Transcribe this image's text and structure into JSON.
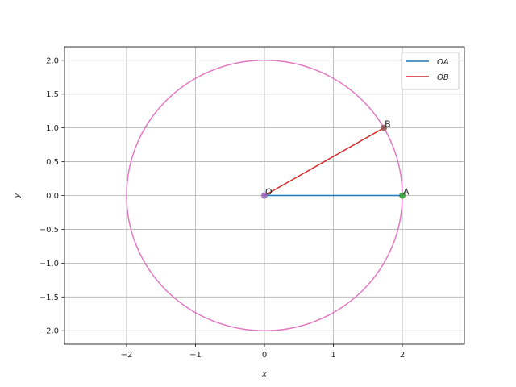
{
  "chart_data": {
    "type": "line",
    "title": "",
    "xlabel": "x",
    "ylabel": "y",
    "xlim": [
      -2.9,
      2.9
    ],
    "ylim": [
      -2.2,
      2.2
    ],
    "grid": true,
    "legend_position": "top-right",
    "xticks": [
      -2,
      -1,
      0,
      1,
      2
    ],
    "yticks": [
      -2.0,
      -1.5,
      -1.0,
      -0.5,
      0.0,
      0.5,
      1.0,
      1.5,
      2.0
    ],
    "xtick_labels": [
      "−2",
      "−1",
      "0",
      "1",
      "2"
    ],
    "ytick_labels": [
      "−2.0",
      "−1.5",
      "−1.0",
      "−0.5",
      "0.0",
      "0.5",
      "1.0",
      "1.5",
      "2.0"
    ],
    "circle": {
      "center": [
        0,
        0
      ],
      "radius": 2,
      "color": "#e377c2"
    },
    "series": [
      {
        "name": "OA",
        "color": "#1f77b4",
        "x": [
          0,
          2
        ],
        "y": [
          0,
          0
        ]
      },
      {
        "name": "OB",
        "color": "#d62728",
        "x": [
          0,
          1.732
        ],
        "y": [
          0,
          1.0
        ]
      }
    ],
    "points": [
      {
        "label": "O",
        "x": 0,
        "y": 0,
        "color": "#9467bd"
      },
      {
        "label": "A",
        "x": 2,
        "y": 0,
        "color": "#2ca02c"
      },
      {
        "label": "B",
        "x": 1.732,
        "y": 1.0,
        "color": "#8c564b"
      }
    ]
  }
}
